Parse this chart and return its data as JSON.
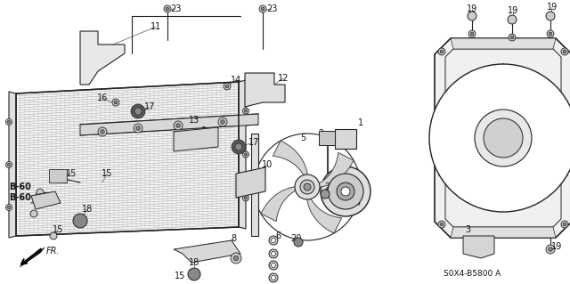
{
  "background_color": "#ffffff",
  "diagram_code": "S0X4-B5800 A",
  "fr_label": "FR.",
  "line_color": "#222222",
  "text_color": "#111111",
  "font_size": 7
}
